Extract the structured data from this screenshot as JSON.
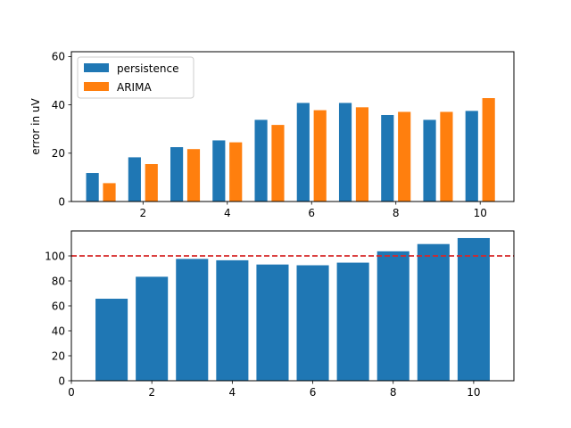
{
  "chart_data": [
    {
      "type": "bar",
      "x": [
        1,
        2,
        3,
        4,
        5,
        6,
        7,
        8,
        9,
        10
      ],
      "series": [
        {
          "name": "persistence",
          "color": "#1f77b4",
          "values": [
            11.8,
            18.3,
            22.5,
            25.3,
            33.8,
            40.8,
            40.8,
            35.8,
            33.8,
            37.5
          ]
        },
        {
          "name": "ARIMA",
          "color": "#ff7f0e",
          "values": [
            7.6,
            15.5,
            21.7,
            24.5,
            31.7,
            37.8,
            39.0,
            37.1,
            37.1,
            42.8
          ]
        }
      ],
      "xlim": [
        0.3,
        10.8
      ],
      "ylim": [
        0,
        62
      ],
      "xticks": [
        2,
        4,
        6,
        8,
        10
      ],
      "yticks": [
        0,
        20,
        40,
        60
      ],
      "xlabel": "",
      "ylabel": "error in uV",
      "legend": "top-left"
    },
    {
      "type": "bar",
      "x": [
        1,
        2,
        3,
        4,
        5,
        6,
        7,
        8,
        9,
        10
      ],
      "series": [
        {
          "color": "#1f77b4",
          "values": [
            65.7,
            83.3,
            97.6,
            96.5,
            93.1,
            92.5,
            94.6,
            103.7,
            109.5,
            114.3
          ]
        }
      ],
      "reference_line": {
        "y": 100,
        "color": "#d62728",
        "style": "dashed"
      },
      "xlim": [
        0,
        11
      ],
      "ylim": [
        0,
        120
      ],
      "xticks": [
        0,
        2,
        4,
        6,
        8,
        10
      ],
      "yticks": [
        0,
        20,
        40,
        60,
        80,
        100
      ],
      "xlabel": "",
      "ylabel": ""
    }
  ]
}
